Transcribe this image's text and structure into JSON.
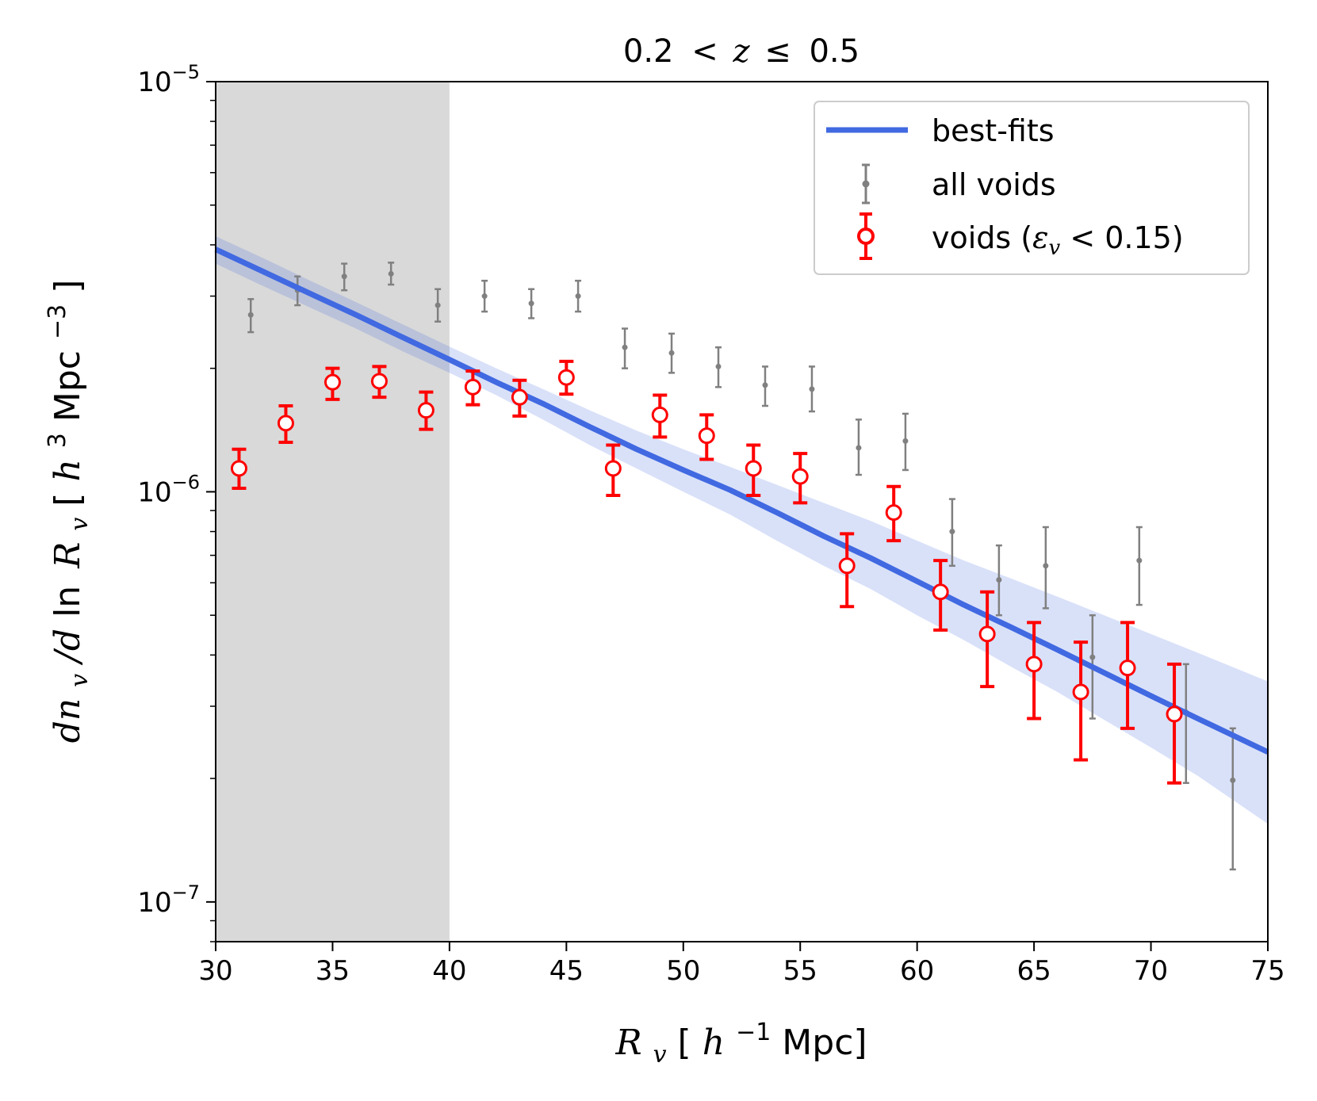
{
  "chart_data": {
    "type": "scatter",
    "title_parts": [
      "0.2",
      "<",
      "z",
      "≤",
      "0.5"
    ],
    "xlabel_parts": [
      "R",
      "v",
      "[",
      "h",
      "−1",
      "Mpc]"
    ],
    "ylabel_parts": [
      "dn",
      "v",
      "/d",
      "ln",
      "R",
      "v",
      " [",
      "h",
      "3",
      "Mpc",
      "−3",
      "]"
    ],
    "x_scale": "linear",
    "y_scale": "log",
    "xlim": [
      30,
      75
    ],
    "ylim": [
      8e-08,
      1e-05
    ],
    "x_ticks": [
      30,
      35,
      40,
      45,
      50,
      55,
      60,
      65,
      70,
      75
    ],
    "x_tick_labels": [
      "30",
      "35",
      "40",
      "45",
      "50",
      "55",
      "60",
      "65",
      "70",
      "75"
    ],
    "y_major_ticks": [
      1e-07,
      1e-06,
      1e-05
    ],
    "y_tick_labels": [
      {
        "base": "10",
        "exp": "−7"
      },
      {
        "base": "10",
        "exp": "−6"
      },
      {
        "base": "10",
        "exp": "−5"
      }
    ],
    "excluded_region": {
      "x": [
        30,
        40
      ],
      "color": "#d9d9d9"
    },
    "legend": {
      "position": "top-right",
      "entries": [
        {
          "label": "best-fits"
        },
        {
          "label": "all voids"
        },
        {
          "label_parts": [
            "voids (",
            "ε",
            "v",
            " < 0.15)"
          ]
        }
      ]
    },
    "series": [
      {
        "name": "best-fits",
        "kind": "line",
        "color": "#4169e1",
        "x": [
          30,
          32,
          34,
          36,
          38,
          40,
          42,
          44,
          46,
          48,
          50,
          52,
          54,
          56,
          58,
          60,
          62,
          64,
          66,
          68,
          70,
          72,
          75
        ],
        "y": [
          3.9e-06,
          3.45e-06,
          3.05e-06,
          2.7e-06,
          2.38e-06,
          2.1e-06,
          1.85e-06,
          1.64e-06,
          1.44e-06,
          1.27e-06,
          1.13e-06,
          1.01e-06,
          8.9e-07,
          7.8e-07,
          6.9e-07,
          6.05e-07,
          5.3e-07,
          4.68e-07,
          4.12e-07,
          3.62e-07,
          3.18e-07,
          2.8e-07,
          2.32e-07
        ],
        "band_low": [
          3.6e-06,
          3.18e-06,
          2.82e-06,
          2.5e-06,
          2.2e-06,
          1.95e-06,
          1.72e-06,
          1.5e-06,
          1.3e-06,
          1.14e-06,
          1e-06,
          8.8e-07,
          7.6e-07,
          6.6e-07,
          5.8e-07,
          5e-07,
          4.35e-07,
          3.75e-07,
          3.25e-07,
          2.78e-07,
          2.38e-07,
          2.03e-07,
          1.55e-07
        ],
        "band_high": [
          4.2e-06,
          3.72e-06,
          3.28e-06,
          2.9e-06,
          2.56e-06,
          2.26e-06,
          2e-06,
          1.78e-06,
          1.58e-06,
          1.41e-06,
          1.27e-06,
          1.15e-06,
          1.04e-06,
          9.4e-07,
          8.5e-07,
          7.6e-07,
          6.8e-07,
          6.15e-07,
          5.55e-07,
          5e-07,
          4.5e-07,
          4.05e-07,
          3.45e-07
        ]
      },
      {
        "name": "all voids",
        "kind": "errorbar",
        "color": "#808080",
        "x": [
          31.5,
          33.5,
          35.5,
          37.5,
          39.5,
          41.5,
          43.5,
          45.5,
          47.5,
          49.5,
          51.5,
          53.5,
          55.5,
          57.5,
          59.5,
          61.5,
          63.5,
          65.5,
          67.5,
          69.5,
          71.5,
          73.5
        ],
        "y": [
          2.7e-06,
          3.1e-06,
          3.35e-06,
          3.4e-06,
          2.85e-06,
          3e-06,
          2.88e-06,
          3e-06,
          2.25e-06,
          2.18e-06,
          2.02e-06,
          1.82e-06,
          1.78e-06,
          1.28e-06,
          1.33e-06,
          8e-07,
          6.1e-07,
          6.6e-07,
          3.95e-07,
          6.8e-07,
          2.9e-07,
          1.98e-07
        ],
        "y_lo": [
          2.45e-06,
          2.85e-06,
          3.1e-06,
          3.2e-06,
          2.6e-06,
          2.75e-06,
          2.65e-06,
          2.75e-06,
          2e-06,
          1.95e-06,
          1.8e-06,
          1.62e-06,
          1.57e-06,
          1.1e-06,
          1.13e-06,
          6.6e-07,
          5e-07,
          5.2e-07,
          2.8e-07,
          5.3e-07,
          1.95e-07,
          1.2e-07
        ],
        "y_hi": [
          2.95e-06,
          3.35e-06,
          3.6e-06,
          3.62e-06,
          3.12e-06,
          3.27e-06,
          3.12e-06,
          3.27e-06,
          2.5e-06,
          2.43e-06,
          2.25e-06,
          2.02e-06,
          2.02e-06,
          1.5e-06,
          1.55e-06,
          9.6e-07,
          7.4e-07,
          8.2e-07,
          5e-07,
          8.2e-07,
          3.8e-07,
          2.65e-07
        ]
      },
      {
        "name": "voids (ε_v < 0.15)",
        "kind": "errorbar",
        "color": "#ff0000",
        "x": [
          31,
          33,
          35,
          37,
          39,
          41,
          43,
          45,
          47,
          49,
          51,
          53,
          55,
          57,
          59,
          61,
          63,
          65,
          67,
          69,
          71
        ],
        "y": [
          1.14e-06,
          1.47e-06,
          1.85e-06,
          1.86e-06,
          1.58e-06,
          1.8e-06,
          1.7e-06,
          1.9e-06,
          1.14e-06,
          1.54e-06,
          1.37e-06,
          1.14e-06,
          1.09e-06,
          6.6e-07,
          8.9e-07,
          5.7e-07,
          4.5e-07,
          3.8e-07,
          3.25e-07,
          3.72e-07,
          2.87e-07
        ],
        "y_lo": [
          1.02e-06,
          1.32e-06,
          1.68e-06,
          1.7e-06,
          1.42e-06,
          1.63e-06,
          1.53e-06,
          1.73e-06,
          9.8e-07,
          1.36e-06,
          1.2e-06,
          9.8e-07,
          9.4e-07,
          5.25e-07,
          7.6e-07,
          4.6e-07,
          3.35e-07,
          2.8e-07,
          2.22e-07,
          2.65e-07,
          1.95e-07
        ],
        "y_hi": [
          1.27e-06,
          1.62e-06,
          2e-06,
          2.02e-06,
          1.75e-06,
          1.97e-06,
          1.87e-06,
          2.08e-06,
          1.3e-06,
          1.72e-06,
          1.54e-06,
          1.3e-06,
          1.24e-06,
          7.9e-07,
          1.03e-06,
          6.8e-07,
          5.7e-07,
          4.8e-07,
          4.3e-07,
          4.8e-07,
          3.8e-07
        ]
      }
    ]
  }
}
